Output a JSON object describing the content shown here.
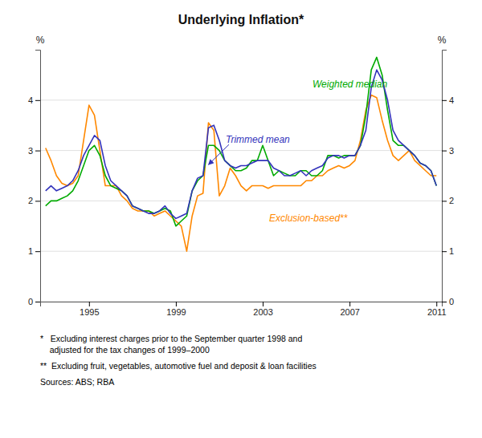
{
  "chart_data": {
    "type": "line",
    "title": "Underlying Inflation*",
    "y_label": "%",
    "y2_label": "%",
    "x": [
      1993.0,
      1993.25,
      1993.5,
      1993.75,
      1994.0,
      1994.25,
      1994.5,
      1994.75,
      1995.0,
      1995.25,
      1995.5,
      1995.75,
      1996.0,
      1996.25,
      1996.5,
      1996.75,
      1997.0,
      1997.25,
      1997.5,
      1997.75,
      1998.0,
      1998.25,
      1998.5,
      1998.75,
      1999.0,
      1999.25,
      1999.5,
      1999.75,
      2000.0,
      2000.25,
      2000.5,
      2000.75,
      2001.0,
      2001.25,
      2001.5,
      2001.75,
      2002.0,
      2002.25,
      2002.5,
      2002.75,
      2003.0,
      2003.25,
      2003.5,
      2003.75,
      2004.0,
      2004.25,
      2004.5,
      2004.75,
      2005.0,
      2005.25,
      2005.5,
      2005.75,
      2006.0,
      2006.25,
      2006.5,
      2006.75,
      2007.0,
      2007.25,
      2007.5,
      2007.75,
      2008.0,
      2008.25,
      2008.5,
      2008.75,
      2009.0,
      2009.25,
      2009.5,
      2009.75,
      2010.0,
      2010.25,
      2010.5,
      2010.75,
      2011.0
    ],
    "series": [
      {
        "name": "Exclusion-based**",
        "color": "#ff8800",
        "values": [
          3.05,
          2.8,
          2.5,
          2.35,
          2.3,
          2.35,
          2.5,
          3.2,
          3.9,
          3.7,
          3.0,
          2.3,
          2.3,
          2.3,
          2.1,
          2.0,
          1.85,
          1.8,
          1.8,
          1.8,
          1.7,
          1.75,
          1.8,
          1.7,
          1.6,
          1.5,
          1.0,
          1.7,
          2.1,
          2.15,
          3.55,
          3.4,
          2.1,
          2.3,
          2.65,
          2.5,
          2.3,
          2.2,
          2.3,
          2.3,
          2.3,
          2.25,
          2.3,
          2.3,
          2.3,
          2.3,
          2.3,
          2.3,
          2.4,
          2.4,
          2.5,
          2.5,
          2.6,
          2.65,
          2.7,
          2.65,
          2.7,
          2.8,
          3.2,
          3.8,
          4.1,
          4.05,
          3.6,
          3.2,
          2.9,
          2.8,
          2.9,
          3.0,
          2.8,
          2.7,
          2.6,
          2.5,
          2.5
        ]
      },
      {
        "name": "Weighted median",
        "color": "#00aa00",
        "values": [
          1.9,
          2.0,
          2.0,
          2.05,
          2.1,
          2.2,
          2.4,
          2.7,
          3.0,
          3.1,
          2.9,
          2.5,
          2.3,
          2.25,
          2.2,
          2.1,
          1.9,
          1.85,
          1.8,
          1.8,
          1.75,
          1.8,
          1.85,
          1.8,
          1.5,
          1.6,
          1.7,
          2.2,
          2.4,
          2.5,
          3.1,
          3.1,
          3.0,
          2.8,
          2.7,
          2.6,
          2.6,
          2.65,
          2.8,
          2.8,
          3.1,
          2.8,
          2.5,
          2.6,
          2.55,
          2.5,
          2.5,
          2.6,
          2.6,
          2.5,
          2.5,
          2.6,
          2.9,
          2.9,
          2.85,
          2.9,
          2.9,
          2.9,
          3.1,
          3.7,
          4.6,
          4.85,
          4.5,
          3.8,
          3.2,
          3.1,
          3.1,
          3.0,
          2.9,
          2.75,
          2.7,
          2.6,
          2.3
        ]
      },
      {
        "name": "Trimmed mean",
        "color": "#3333bb",
        "values": [
          2.2,
          2.3,
          2.2,
          2.25,
          2.3,
          2.4,
          2.6,
          2.9,
          3.1,
          3.3,
          3.2,
          2.7,
          2.4,
          2.3,
          2.2,
          2.1,
          1.9,
          1.85,
          1.8,
          1.75,
          1.75,
          1.8,
          1.9,
          1.75,
          1.65,
          1.7,
          1.75,
          2.2,
          2.45,
          2.5,
          3.45,
          3.5,
          3.2,
          2.8,
          2.7,
          2.65,
          2.7,
          2.7,
          2.75,
          2.8,
          2.8,
          2.8,
          2.65,
          2.6,
          2.5,
          2.5,
          2.55,
          2.6,
          2.5,
          2.6,
          2.65,
          2.7,
          2.85,
          2.9,
          2.9,
          2.85,
          2.9,
          2.9,
          3.1,
          3.4,
          4.25,
          4.6,
          4.4,
          4.0,
          3.4,
          3.2,
          3.1,
          3.0,
          2.9,
          2.75,
          2.7,
          2.6,
          2.3
        ]
      }
    ],
    "xlim": [
      1992.75,
      2011.25
    ],
    "xticks": [
      1995,
      1999,
      2003,
      2007,
      2011
    ],
    "ylim": [
      0,
      5
    ],
    "yticks": [
      0,
      1,
      2,
      3,
      4
    ],
    "y2lim": [
      0,
      5
    ],
    "y2ticks": [
      0,
      1,
      2,
      3,
      4
    ],
    "grid": "y",
    "annotations": [
      "*   Excluding interest charges prior to the September quarter 1998 and\n    adjusted for the tax changes of 1999–2000",
      "**  Excluding fruit, vegetables, automotive fuel and deposit & loan facilities",
      "Sources: ABS; RBA"
    ]
  }
}
